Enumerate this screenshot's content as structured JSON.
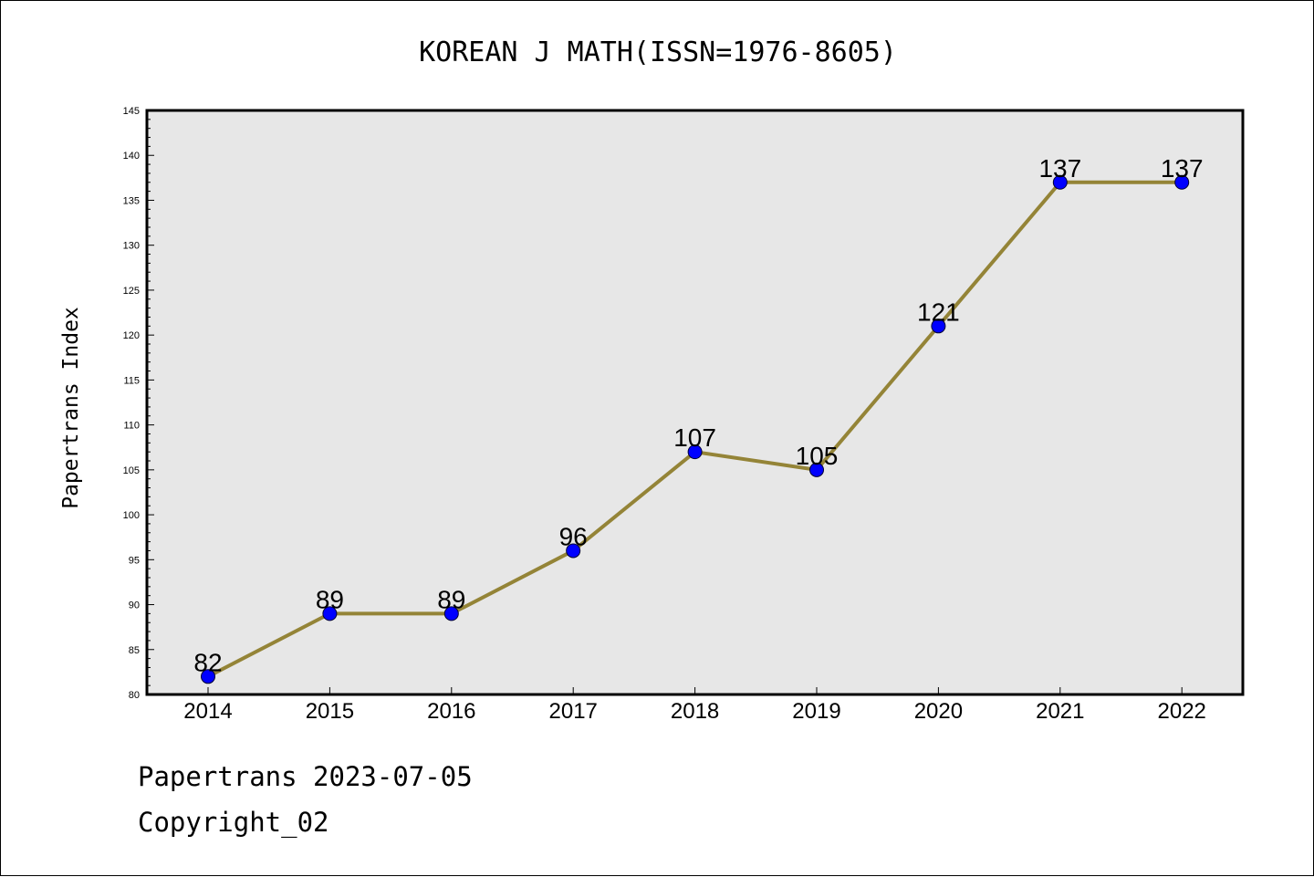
{
  "chart_data": {
    "type": "line",
    "title": "KOREAN J MATH(ISSN=1976-8605)",
    "xlabel": "",
    "ylabel": "Papertrans Index",
    "categories": [
      "2014",
      "2015",
      "2016",
      "2017",
      "2018",
      "2019",
      "2020",
      "2021",
      "2022"
    ],
    "series": [
      {
        "values": [
          82,
          89,
          89,
          96,
          107,
          105,
          121,
          137,
          137
        ]
      }
    ],
    "data_labels": [
      "82",
      "89",
      "89",
      "96",
      "107",
      "105",
      "121",
      "137",
      "137"
    ],
    "ylim": [
      80,
      145
    ],
    "y_ticks": [
      "80",
      "85",
      "90",
      "95",
      "100",
      "105",
      "110",
      "115",
      "120",
      "125",
      "130",
      "135",
      "140",
      "145"
    ],
    "grid": false,
    "legend": "none",
    "colors": {
      "line": "#948437",
      "marker": "#0000ff",
      "plot_background": "#e7e7e7",
      "axes": "#000000"
    }
  },
  "footer": {
    "line1": "Papertrans 2023-07-05",
    "line2": "Copyright_02"
  }
}
